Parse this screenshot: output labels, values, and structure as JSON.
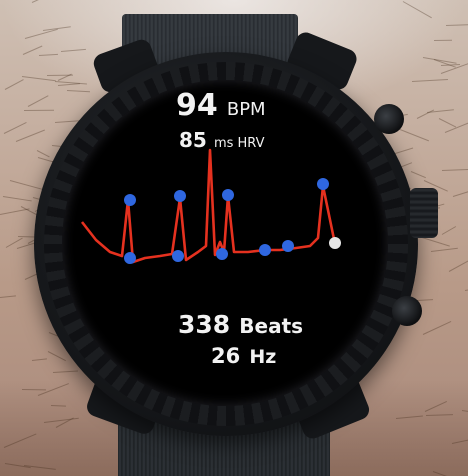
{
  "watch_face": {
    "heart_rate": {
      "value": "94",
      "unit": "BPM"
    },
    "hrv": {
      "value": "85",
      "unit": "ms HRV"
    },
    "beats": {
      "value": "338",
      "unit": "Beats"
    },
    "sample_rate": {
      "value": "26",
      "unit": "Hz"
    }
  },
  "colors": {
    "waveform": "#e5311f",
    "peak_marker": "#2f67e0",
    "cursor_marker": "#e6e6e6",
    "screen_text": "#f2f2f2"
  },
  "icons": [
    "watch-crown-icon",
    "watch-button-icon"
  ]
}
